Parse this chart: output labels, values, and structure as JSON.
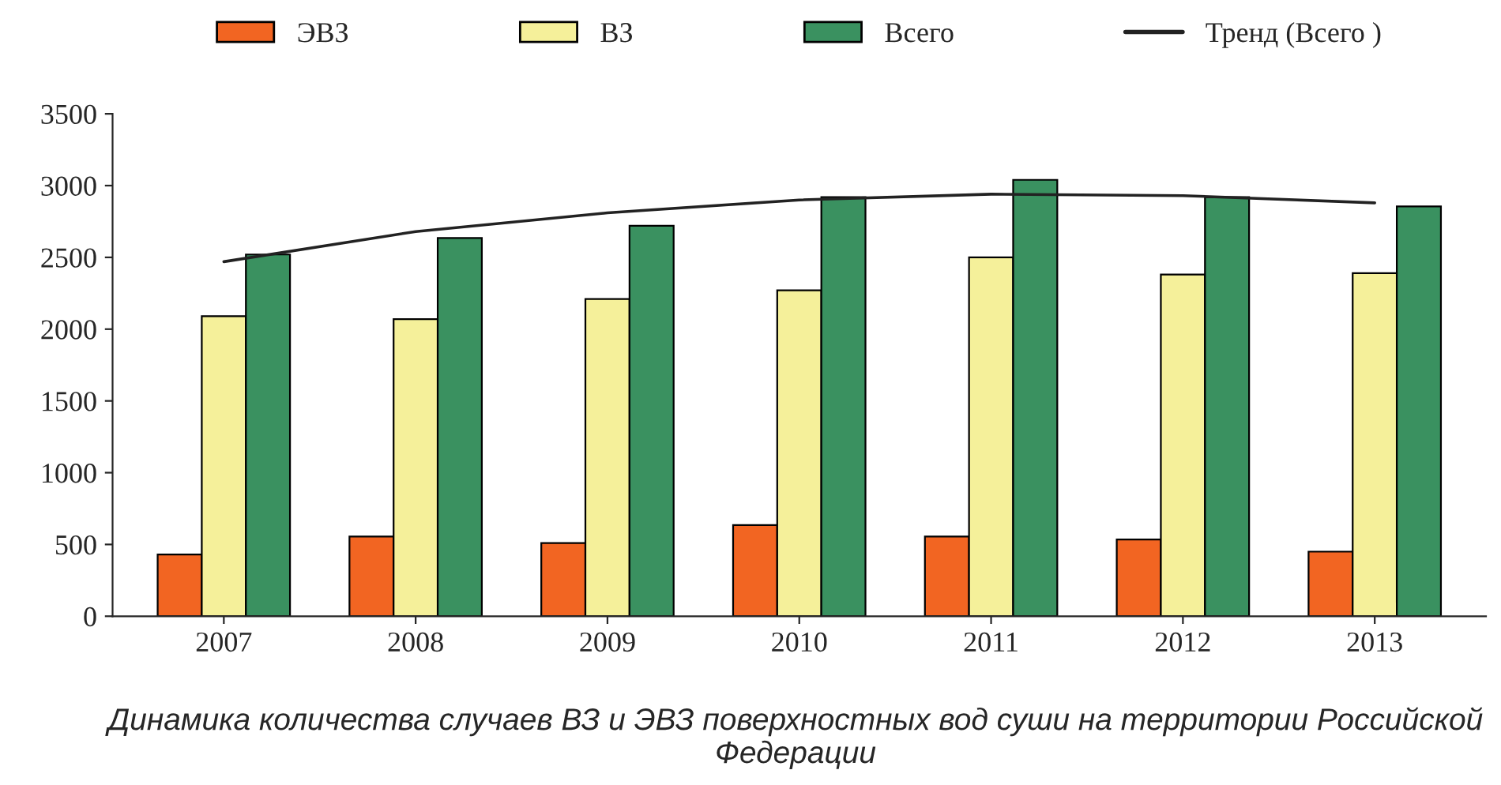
{
  "chart_data": {
    "type": "bar",
    "title": "Динамика количества случаев ВЗ и ЭВЗ поверхностных вод суши на территории Российской Федерации",
    "categories": [
      "2007",
      "2008",
      "2009",
      "2010",
      "2011",
      "2012",
      "2013"
    ],
    "series": [
      {
        "name": "ЭВЗ",
        "color": "#f26522",
        "values": [
          430,
          555,
          510,
          635,
          555,
          535,
          450
        ]
      },
      {
        "name": "ВЗ",
        "color": "#f5f09a",
        "values": [
          2090,
          2070,
          2210,
          2270,
          2500,
          2380,
          2390
        ]
      },
      {
        "name": "Всего",
        "color": "#3a9160",
        "values": [
          2520,
          2635,
          2720,
          2920,
          3040,
          2920,
          2855
        ]
      },
      {
        "name": "Тренд (Всего )",
        "type": "line",
        "color": "#222222",
        "values": [
          2470,
          2680,
          2810,
          2900,
          2940,
          2930,
          2880
        ]
      }
    ],
    "ylim": [
      0,
      3500
    ],
    "yticks": [
      0,
      500,
      1000,
      1500,
      2000,
      2500,
      3000,
      3500
    ],
    "grid": false,
    "legend": "top"
  }
}
